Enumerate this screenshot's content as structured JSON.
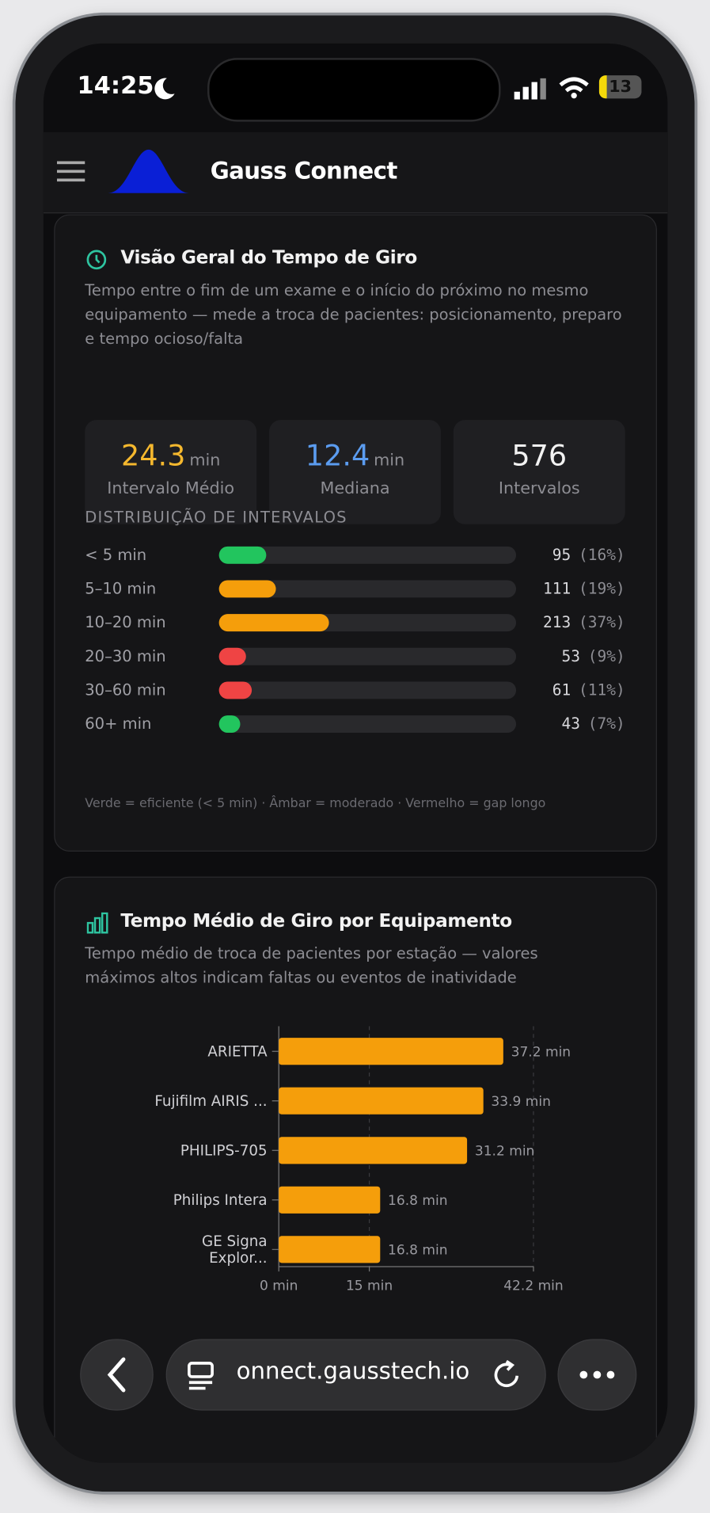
{
  "status_bar": {
    "time": "14:25",
    "battery": "13"
  },
  "header": {
    "title": "Gauss Connect"
  },
  "overview": {
    "title": "Visão Geral do Tempo de Giro",
    "description": "Tempo entre o fim de um exame e o início do próximo no mesmo equipamento — mede a troca de pacientes: posicionamento, preparo e tempo ocioso/falta",
    "stats": [
      {
        "value": 24.3,
        "unit": "min",
        "label": "Intervalo Médio",
        "color": "#f5b82e"
      },
      {
        "value": 12.4,
        "unit": "min",
        "label": "Mediana",
        "color": "#5b9cf0"
      },
      {
        "value": 576,
        "label": "Intervalos",
        "color": "#f2f2f2"
      }
    ],
    "distribution": {
      "title": "DISTRIBUIÇÃO DE INTERVALOS",
      "rows": [
        {
          "label": "< 5 min",
          "count": 95,
          "percent": 16,
          "percent_label": "(16%)",
          "color": "#22c55e"
        },
        {
          "label": "5–10 min",
          "count": 111,
          "percent": 19,
          "percent_label": "(19%)",
          "color": "#f59e0b"
        },
        {
          "label": "10–20 min",
          "count": 213,
          "percent": 37,
          "percent_label": "(37%)",
          "color": "#f59e0b"
        },
        {
          "label": "20–30 min",
          "count": 53,
          "percent": 9,
          "percent_label": "(9%)",
          "color": "#ef4444"
        },
        {
          "label": "30–60 min",
          "count": 61,
          "percent": 11,
          "percent_label": "(11%)",
          "color": "#ef4444"
        },
        {
          "label": "60+ min",
          "count": 43,
          "percent": 7,
          "percent_label": "(7%)",
          "color": "#22c55e"
        }
      ]
    },
    "legend_note": "Verde = eficiente (< 5 min) · Âmbar = moderado · Vermelho = gap longo"
  },
  "equipment": {
    "title": "Tempo Médio de Giro por Equipamento",
    "description": "Tempo médio de troca de pacientes por estação — valores máximos altos indicam faltas ou eventos de inatividade",
    "chart": {
      "type": "bar",
      "orientation": "horizontal",
      "categories": [
        "ARIETTA",
        "Fujifilm AIRIS ...",
        "PHILIPS-705",
        "Philips Intera",
        "GE Signa\nExplor..."
      ],
      "values": [
        37.2,
        33.9,
        31.2,
        16.8,
        16.8
      ],
      "value_labels": [
        "37.2 min",
        "33.9 min",
        "31.2 min",
        "16.8 min",
        "16.8 min"
      ],
      "color": "#f59e0b",
      "xlim": [
        0,
        42.2
      ],
      "xticks": [
        {
          "value": 0,
          "label": "0 min"
        },
        {
          "value": 15,
          "label": "15 min"
        },
        {
          "value": 42.2,
          "label": "42.2 min"
        }
      ],
      "grid": true
    }
  },
  "browser": {
    "url": "onnect.gausstech.io"
  }
}
